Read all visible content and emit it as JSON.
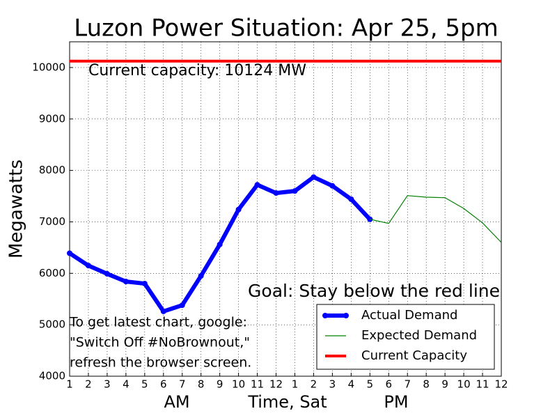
{
  "chart_data": {
    "type": "line",
    "title": "Luzon Power Situation: Apr 25, 5pm",
    "x_label": "Time, Sat",
    "y_label": "Megawatts",
    "x_group_labels": [
      "AM",
      "PM"
    ],
    "categories": [
      "1",
      "2",
      "3",
      "4",
      "5",
      "6",
      "7",
      "8",
      "9",
      "10",
      "11",
      "12",
      "1",
      "2",
      "3",
      "4",
      "5",
      "6",
      "7",
      "8",
      "9",
      "10",
      "11",
      "12"
    ],
    "ylim": [
      4000,
      10500
    ],
    "yticks": [
      4000,
      5000,
      6000,
      7000,
      8000,
      9000,
      10000
    ],
    "grid": true,
    "legend": "lower right",
    "series": [
      {
        "name": "Actual Demand",
        "color": "#0000ff",
        "values": [
          6390,
          6150,
          5990,
          5840,
          5800,
          5260,
          5380,
          5950,
          6560,
          7240,
          7720,
          7560,
          7600,
          7870,
          7700,
          7440,
          7050,
          null,
          null,
          null,
          null,
          null,
          null,
          null
        ]
      },
      {
        "name": "Expected Demand",
        "color": "#008000",
        "values": [
          null,
          null,
          null,
          null,
          null,
          null,
          null,
          null,
          null,
          null,
          null,
          null,
          null,
          null,
          null,
          null,
          7050,
          6970,
          7510,
          7480,
          7470,
          7260,
          6980,
          6600
        ]
      },
      {
        "name": "Current Capacity",
        "color": "#ff0000",
        "value": 10124
      }
    ],
    "annotations": [
      "Current capacity: 10124 MW",
      "Goal: Stay below the red line",
      "To get latest chart, google:",
      "\"Switch Off #NoBrownout,\"",
      "refresh the browser screen."
    ]
  }
}
